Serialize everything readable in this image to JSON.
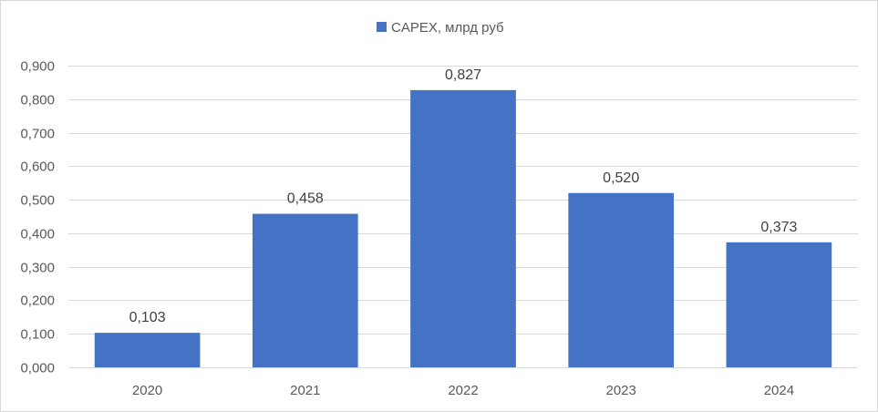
{
  "chart_data": {
    "type": "bar",
    "categories": [
      "2020",
      "2021",
      "2022",
      "2023",
      "2024"
    ],
    "series": [
      {
        "name": "CAPEX, млрд руб",
        "values": [
          0.103,
          0.458,
          0.827,
          0.52,
          0.373
        ]
      }
    ],
    "data_labels": [
      "0,103",
      "0,458",
      "0,827",
      "0,520",
      "0,373"
    ],
    "y_tick_labels": [
      "0,000",
      "0,100",
      "0,200",
      "0,300",
      "0,400",
      "0,500",
      "0,600",
      "0,700",
      "0,800",
      "0,900"
    ],
    "y_ticks": [
      0,
      0.1,
      0.2,
      0.3,
      0.4,
      0.5,
      0.6,
      0.7,
      0.8,
      0.9
    ],
    "ylim": [
      0,
      0.9
    ],
    "grid": true,
    "legend_position": "top",
    "bar_color": "#4472c4",
    "grid_color": "#d9d9d9",
    "title": "",
    "xlabel": "",
    "ylabel": ""
  }
}
